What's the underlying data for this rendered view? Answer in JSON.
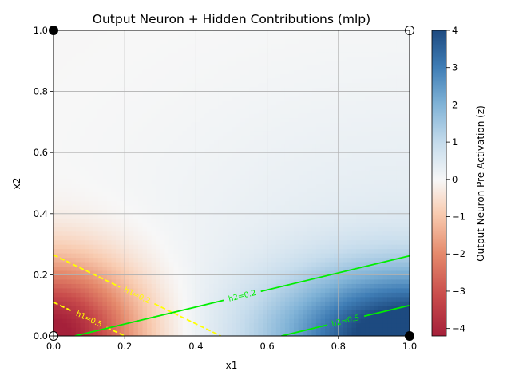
{
  "chart_data": {
    "type": "heatmap",
    "title": "Output Neuron + Hidden Contributions (mlp)",
    "xlabel": "x1",
    "ylabel": "x2",
    "xlim": [
      0,
      1
    ],
    "ylim": [
      0,
      1
    ],
    "xticks": [
      "0.0",
      "0.2",
      "0.4",
      "0.6",
      "0.8",
      "1.0"
    ],
    "yticks": [
      "0.0",
      "0.2",
      "0.4",
      "0.6",
      "0.8",
      "1.0"
    ],
    "grid": true,
    "colorbar": {
      "label": "Output Neuron Pre-Activation (z)",
      "colormap": "RdBu",
      "range": [
        -4.2,
        4
      ],
      "ticks": [
        "4",
        "3",
        "2",
        "1",
        "0",
        "−1",
        "−2",
        "−3",
        "−4"
      ]
    },
    "contours": [
      {
        "label": "h1=0.2",
        "color": "#ffff00",
        "style": "dashed",
        "points": [
          [
            0,
            0.265
          ],
          [
            0.47,
            0.0
          ]
        ]
      },
      {
        "label": "h1=0.5",
        "color": "#ffff00",
        "style": "dashed",
        "points": [
          [
            0,
            0.11
          ],
          [
            0.2,
            0.0
          ]
        ]
      },
      {
        "label": "h2=0.2",
        "color": "#00ee00",
        "style": "solid",
        "points": [
          [
            0.06,
            0.0
          ],
          [
            1.0,
            0.262
          ]
        ]
      },
      {
        "label": "h2=0.5",
        "color": "#00ee00",
        "style": "solid",
        "points": [
          [
            0.64,
            0.0
          ],
          [
            1.0,
            0.1
          ]
        ]
      }
    ],
    "points": [
      {
        "x": 0,
        "y": 0,
        "fill": "#ffffff"
      },
      {
        "x": 0,
        "y": 1,
        "fill": "#000000"
      },
      {
        "x": 1,
        "y": 0,
        "fill": "#000000"
      },
      {
        "x": 1,
        "y": 1,
        "fill": "#ffffff"
      }
    ]
  }
}
